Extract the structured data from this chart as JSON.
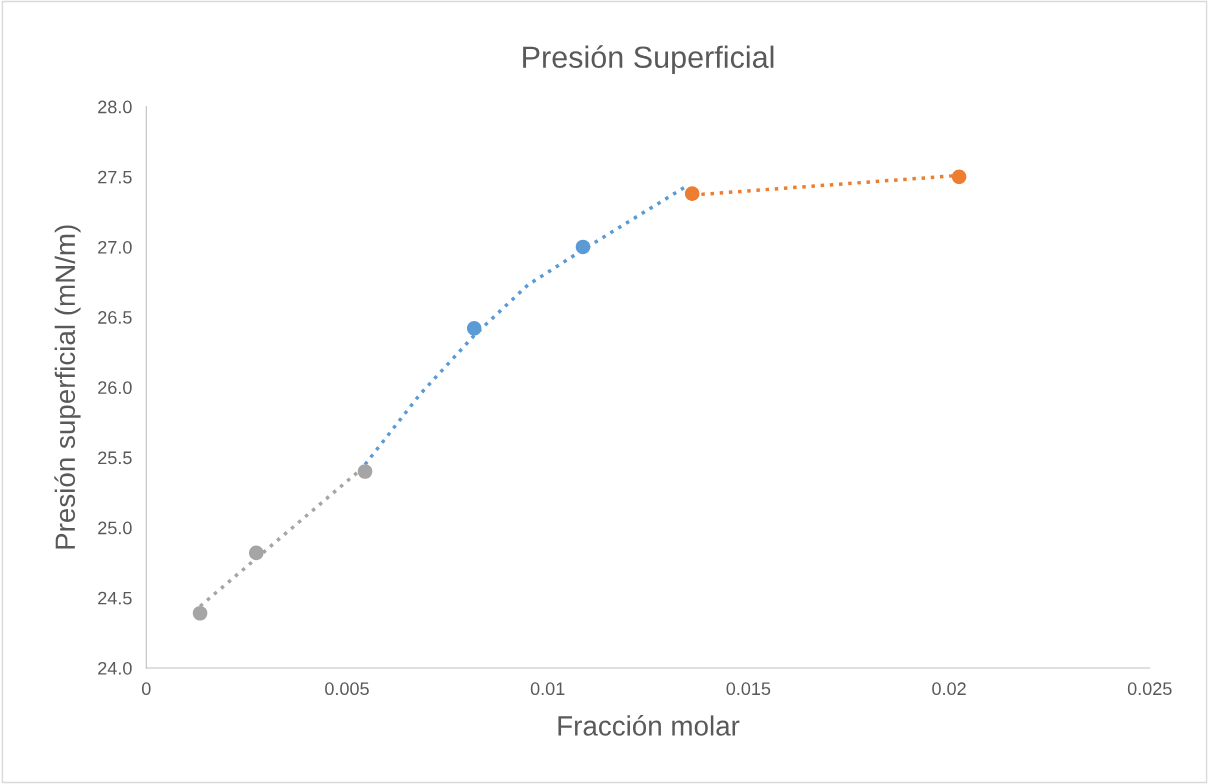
{
  "chart_data": {
    "type": "scatter",
    "title": "Presión Superficial",
    "xlabel": "Fracción molar",
    "ylabel": "Presión superficial (mN/m)",
    "xlim": [
      0,
      0.025
    ],
    "xticks": [
      0,
      0.005,
      0.01,
      0.015,
      0.02,
      0.025
    ],
    "ylim": [
      24,
      28
    ],
    "yticks": [
      {
        "value": 24,
        "label": "24.0"
      },
      {
        "value": 24.5,
        "label": "24.5"
      },
      {
        "value": 25,
        "label": "25.0"
      },
      {
        "value": 25.5,
        "label": "25.5"
      },
      {
        "value": 26,
        "label": "26.0"
      },
      {
        "value": 26.5,
        "label": "26.5"
      },
      {
        "value": 27,
        "label": "27.0"
      },
      {
        "value": 27.5,
        "label": "27.5"
      },
      {
        "value": 28,
        "label": "28.0"
      }
    ],
    "grid": false,
    "legend": false,
    "marker": "circle",
    "series": [
      {
        "type": "line",
        "line_style": "dotted",
        "marker": "none",
        "color": "#a5a5a5",
        "x": [
          0.00134,
          0.00545
        ],
        "values": [
          24.44,
          25.44
        ]
      },
      {
        "type": "line",
        "line_style": "dotted",
        "marker": "none",
        "color": "#5b9bd5",
        "x": [
          0.00545,
          0.00682,
          0.00817,
          0.00951,
          0.01088,
          0.0123,
          0.01344
        ],
        "values": [
          25.45,
          25.95,
          26.37,
          26.73,
          26.98,
          27.23,
          27.43
        ]
      },
      {
        "type": "line",
        "line_style": "dotted",
        "marker": "none",
        "color": "#ed7d31",
        "x": [
          0.0136,
          0.02025
        ],
        "values": [
          27.37,
          27.51
        ]
      },
      {
        "color": "#a5a5a5",
        "x": [
          0.00134,
          0.00274,
          0.00545
        ],
        "values": [
          24.39,
          24.82,
          25.4
        ]
      },
      {
        "color": "#5b9bd5",
        "x": [
          0.00817,
          0.01088
        ],
        "values": [
          26.42,
          27.0
        ]
      },
      {
        "color": "#ed7d31",
        "x": [
          0.0136,
          0.02025
        ],
        "values": [
          27.38,
          27.5
        ]
      }
    ]
  }
}
